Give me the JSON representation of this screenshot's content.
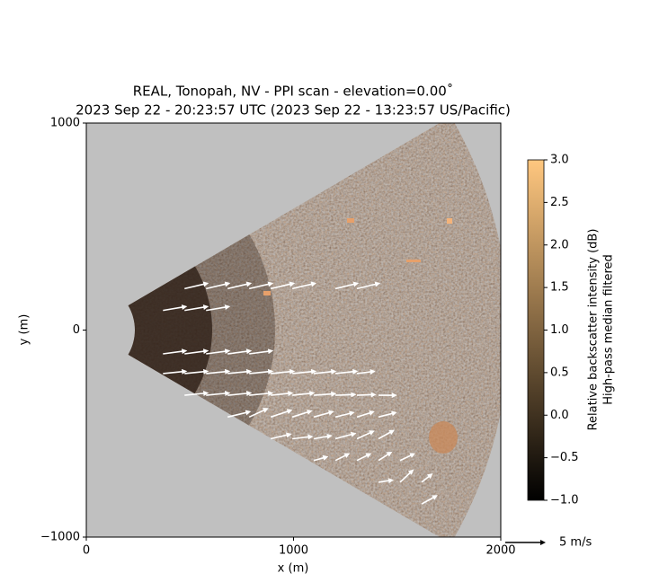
{
  "chart_data": {
    "type": "quiver",
    "title": [
      "REAL, Tonopah, NV - PPI scan - elevation=0.00˚",
      "2023 Sep 22 - 20:23:57 UTC (2023 Sep 22 - 13:23:57 US/Pacific)"
    ],
    "x_label": "x (m)",
    "y_label": "y (m)",
    "xlim": [
      0,
      2000
    ],
    "xticks": [
      0,
      1000,
      2000
    ],
    "ylim": [
      -1000,
      1000
    ],
    "yticks": [
      {
        "value": -1000,
        "label": "−1000"
      },
      0,
      1000
    ],
    "colorbar": {
      "label": [
        "Relative backscatter intensity (dB)",
        "High-pass median filtered"
      ],
      "clim": [
        -1,
        3
      ],
      "colors": [
        "#000000",
        "#ffc77f"
      ],
      "ticks": [
        {
          "value": 3,
          "label": "3.0"
        },
        2.5,
        {
          "value": 2,
          "label": "2.0"
        },
        1.5,
        {
          "value": 1,
          "label": "1.0"
        },
        0.5,
        {
          "value": 0,
          "label": "0.0"
        },
        {
          "value": -0.5,
          "label": "−0.5"
        },
        {
          "value": -1,
          "label": "−1.0"
        }
      ]
    },
    "quiver_key": {
      "value": 5,
      "label": "5 m/s"
    },
    "arrow_color": "#ffffff",
    "vectors": {
      "x": [
        474,
        578,
        682,
        786,
        890,
        994,
        1202,
        1306,
        370,
        474,
        578,
        370,
        474,
        578,
        682,
        786,
        370,
        474,
        578,
        682,
        786,
        890,
        994,
        1098,
        1202,
        1306,
        474,
        578,
        682,
        786,
        890,
        994,
        1098,
        1202,
        1306,
        1410,
        682,
        786,
        890,
        994,
        1098,
        1202,
        1306,
        1410,
        890,
        994,
        1098,
        1202,
        1306,
        1410,
        1098,
        1202,
        1306,
        1410,
        1514,
        1410,
        1514,
        1618,
        1618
      ],
      "y": [
        200,
        200,
        200,
        200,
        200,
        200,
        200,
        200,
        95,
        95,
        95,
        -115,
        -115,
        -115,
        -115,
        -115,
        -210,
        -210,
        -210,
        -210,
        -210,
        -210,
        -210,
        -210,
        -210,
        -210,
        -315,
        -315,
        -315,
        -315,
        -315,
        -315,
        -315,
        -315,
        -315,
        -315,
        -420,
        -420,
        -420,
        -420,
        -420,
        -420,
        -420,
        -420,
        -525,
        -525,
        -525,
        -525,
        -525,
        -525,
        -630,
        -630,
        -630,
        -630,
        -630,
        -735,
        -735,
        -735,
        -840
      ],
      "u": [
        3.0,
        3.0,
        3.0,
        3.0,
        3.0,
        3.0,
        2.9,
        2.9,
        3.0,
        3.0,
        3.0,
        3.0,
        3.0,
        3.0,
        3.0,
        3.0,
        3.0,
        3.0,
        3.0,
        3.0,
        3.0,
        3.0,
        3.0,
        2.8,
        2.8,
        2.3,
        3.0,
        3.0,
        3.0,
        3.0,
        2.8,
        2.8,
        2.8,
        2.6,
        2.4,
        2.3,
        2.9,
        2.4,
        2.7,
        2.5,
        2.5,
        2.4,
        2.2,
        2.3,
        2.6,
        2.6,
        2.3,
        2.6,
        2.2,
        2.0,
        1.8,
        1.8,
        1.8,
        1.7,
        1.9,
        1.9,
        1.7,
        1.4,
        2.0
      ],
      "v": [
        0.7,
        0.7,
        0.7,
        0.7,
        0.7,
        0.7,
        0.7,
        0.7,
        0.5,
        0.5,
        0.5,
        0.4,
        0.4,
        0.4,
        0.4,
        0.4,
        0.3,
        0.3,
        0.3,
        0.3,
        0.3,
        0.3,
        0.3,
        0.3,
        0.3,
        0.3,
        0.3,
        0.3,
        0.3,
        0.3,
        0.3,
        0.3,
        0.2,
        0.1,
        0.1,
        0,
        0.7,
        1.1,
        0.9,
        0.8,
        0.7,
        0.6,
        0.7,
        0.6,
        0.6,
        0.3,
        0.4,
        0.7,
        1.0,
        1.1,
        0.5,
        0.9,
        0.9,
        1.1,
        0.9,
        0.3,
        1.6,
        1.1,
        1.1
      ]
    }
  }
}
